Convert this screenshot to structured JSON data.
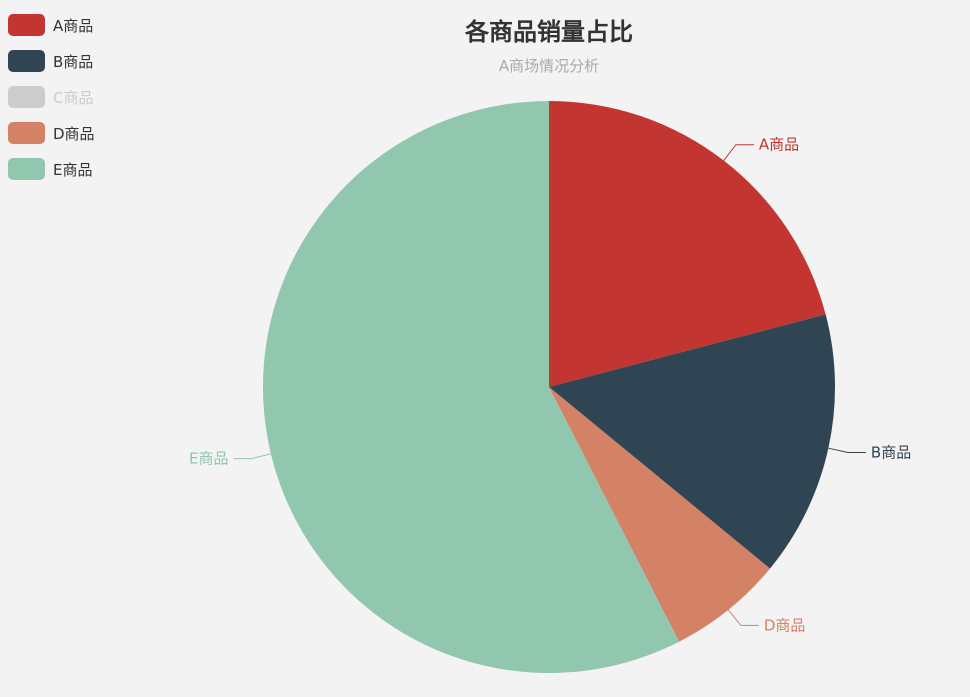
{
  "chart_data": {
    "type": "pie",
    "title": "各商品销量占比",
    "subtitle": "A商场情况分析",
    "legend_position": "top-left",
    "series": [
      {
        "name": "A商品",
        "value": 32,
        "color": "#c23531",
        "visible": true
      },
      {
        "name": "B商品",
        "value": 23,
        "color": "#2f4554",
        "visible": true
      },
      {
        "name": "C商品",
        "value": null,
        "color": "#61a0a8",
        "visible": false
      },
      {
        "name": "D商品",
        "value": 10,
        "color": "#d48265",
        "visible": true
      },
      {
        "name": "E商品",
        "value": 88,
        "color": "#91c7ae",
        "visible": true
      }
    ],
    "legend_inactive_color": "#cccccc"
  }
}
